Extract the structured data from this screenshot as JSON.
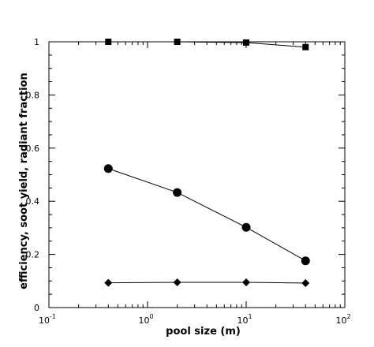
{
  "chart_data": {
    "type": "line",
    "title": "",
    "xlabel": "pool size (m)",
    "ylabel": "efficiency, soot yield, radiant fraction",
    "x_scale": "log",
    "xlim": [
      0.1,
      100
    ],
    "ylim": [
      0,
      1
    ],
    "x_ticks": [
      {
        "value": 0.1,
        "base": "10",
        "exp": "-1"
      },
      {
        "value": 1,
        "base": "10",
        "exp": "0"
      },
      {
        "value": 10,
        "base": "10",
        "exp": "1"
      },
      {
        "value": 100,
        "base": "10",
        "exp": "2"
      }
    ],
    "y_ticks": [
      {
        "value": 0,
        "label": "0"
      },
      {
        "value": 0.2,
        "label": "0.2"
      },
      {
        "value": 0.4,
        "label": "0.4"
      },
      {
        "value": 0.6,
        "label": "0.6"
      },
      {
        "value": 0.8,
        "label": "0.8"
      },
      {
        "value": 1,
        "label": "1"
      }
    ],
    "grid": false,
    "legend": "none",
    "series": [
      {
        "marker": "square",
        "x": [
          0.4,
          2,
          10,
          40
        ],
        "y": [
          1.0,
          1.0,
          0.997,
          0.98
        ]
      },
      {
        "marker": "circle",
        "x": [
          0.4,
          2,
          10,
          40
        ],
        "y": [
          0.523,
          0.433,
          0.302,
          0.176
        ]
      },
      {
        "marker": "diamond",
        "x": [
          0.4,
          2,
          10,
          40
        ],
        "y": [
          0.093,
          0.095,
          0.095,
          0.092
        ]
      }
    ]
  }
}
